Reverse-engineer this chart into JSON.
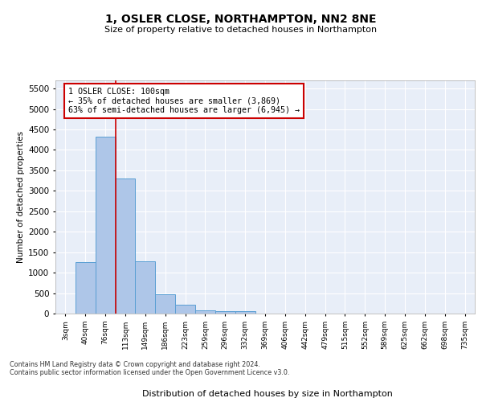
{
  "title": "1, OSLER CLOSE, NORTHAMPTON, NN2 8NE",
  "subtitle": "Size of property relative to detached houses in Northampton",
  "xlabel": "Distribution of detached houses by size in Northampton",
  "ylabel": "Number of detached properties",
  "bar_color": "#aec6e8",
  "bar_edge_color": "#5a9fd4",
  "background_color": "#e8eef8",
  "grid_color": "#ffffff",
  "categories": [
    "3sqm",
    "40sqm",
    "76sqm",
    "113sqm",
    "149sqm",
    "186sqm",
    "223sqm",
    "259sqm",
    "296sqm",
    "332sqm",
    "369sqm",
    "406sqm",
    "442sqm",
    "479sqm",
    "515sqm",
    "552sqm",
    "589sqm",
    "625sqm",
    "662sqm",
    "698sqm",
    "735sqm"
  ],
  "values": [
    0,
    1260,
    4330,
    3300,
    1280,
    480,
    215,
    80,
    55,
    50,
    0,
    0,
    0,
    0,
    0,
    0,
    0,
    0,
    0,
    0,
    0
  ],
  "ylim": [
    0,
    5700
  ],
  "yticks": [
    0,
    500,
    1000,
    1500,
    2000,
    2500,
    3000,
    3500,
    4000,
    4500,
    5000,
    5500
  ],
  "vline_x": 2.5,
  "vline_color": "#cc0000",
  "annotation_text": "1 OSLER CLOSE: 100sqm\n← 35% of detached houses are smaller (3,869)\n63% of semi-detached houses are larger (6,945) →",
  "footer1": "Contains HM Land Registry data © Crown copyright and database right 2024.",
  "footer2": "Contains public sector information licensed under the Open Government Licence v3.0."
}
